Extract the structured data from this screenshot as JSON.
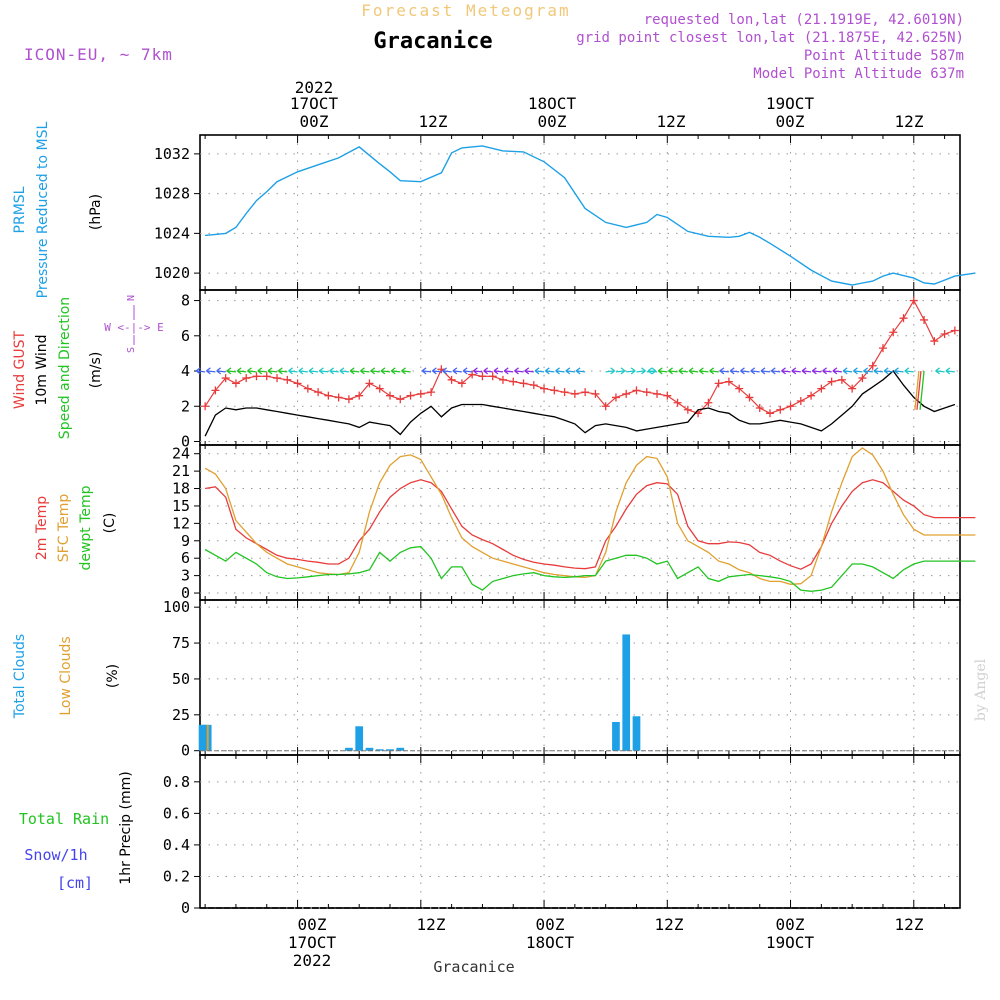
{
  "header": {
    "title": "Forecast Meteogram",
    "location": "Gracanice",
    "model": "ICON-EU, ~ 7km",
    "requested": "requested lon,lat (21.1919E, 42.6019N)",
    "closest": "grid point closest lon,lat (21.1875E, 42.625N)",
    "point_alt": "Point Altitude 587m",
    "model_alt": "Model Point Altitude 637m"
  },
  "footer": {
    "location": "Gracanice",
    "watermark": "by Angel"
  },
  "colors": {
    "pressure": "#1ea0e6",
    "gust": "#e83c3c",
    "wind": "#000000",
    "winddir": "#22c422",
    "t2m": "#e83c3c",
    "sfc": "#e0a030",
    "dewpt": "#22c422",
    "total_clouds": "#1ea0e6",
    "low_clouds": "#e0a030",
    "rain": "#22c422",
    "snow": "#4444ee",
    "meta": "#b050d0",
    "title": "#f0c878"
  },
  "time_axis": {
    "top_dates": [
      {
        "hour": 0,
        "year": "2022",
        "day": "17OCT",
        "z": "00Z"
      },
      {
        "hour": 24,
        "day": "18OCT",
        "z": "00Z"
      },
      {
        "hour": 48,
        "day": "19OCT",
        "z": "00Z"
      }
    ],
    "top_12z": [
      {
        "hour": 12,
        "z": "12Z"
      },
      {
        "hour": 36,
        "z": "12Z"
      },
      {
        "hour": 60,
        "z": "12Z"
      }
    ],
    "bottom_dates": [
      {
        "hour": 0,
        "z": "00Z",
        "day": "17OCT",
        "year": "2022"
      },
      {
        "hour": 24,
        "z": "00Z",
        "day": "18OCT"
      },
      {
        "hour": 48,
        "z": "00Z",
        "day": "19OCT"
      }
    ],
    "bottom_12z": [
      {
        "hour": 12,
        "z": "12Z"
      },
      {
        "hour": 36,
        "z": "12Z"
      },
      {
        "hour": 60,
        "z": "12Z"
      }
    ]
  },
  "panels": {
    "pressure": {
      "label_lines": [
        "PRMSL",
        "Pressure Reduced to MSL"
      ],
      "unit": "(hPa)",
      "ticks": [
        "1020",
        "1024",
        "1028",
        "1032"
      ]
    },
    "wind": {
      "label_gust": "Wind GUST",
      "label_wind": "10m Wind",
      "label_dir": "Speed and Direction",
      "unit": "(m/s)",
      "compass_n": "N",
      "compass_s": "S",
      "compass_ew": "W <-|-> E",
      "ticks": [
        "0",
        "2",
        "4",
        "6",
        "8"
      ]
    },
    "temp": {
      "label_t2m": "2m Temp",
      "label_sfc": "SFC Temp",
      "label_dew": "dewpt Temp",
      "unit": "(C)",
      "ticks": [
        "0",
        "3",
        "6",
        "9",
        "12",
        "15",
        "18",
        "21",
        "24"
      ]
    },
    "clouds": {
      "label_total": "Total Clouds",
      "label_low": "Low Clouds",
      "unit": "(%)",
      "ticks": [
        "0",
        "25",
        "50",
        "75",
        "100"
      ]
    },
    "precip": {
      "label_rain": "Total  Rain",
      "label_snow": "Snow/1h",
      "label_cm": "[cm]",
      "label_axis": "1hr Precip (mm)",
      "ticks": [
        "0",
        "0.2",
        "0.4",
        "0.6",
        "0.8"
      ]
    }
  },
  "chart_data": [
    {
      "type": "line",
      "title": "PRMSL Pressure Reduced to MSL",
      "ylabel": "(hPa)",
      "ylim": [
        1018.3,
        1033.9
      ],
      "x": [
        -9,
        -7,
        -6,
        -5,
        -4,
        -3,
        -2,
        0,
        2,
        4,
        6,
        8,
        9,
        10,
        12,
        14,
        15,
        16,
        18,
        20,
        22,
        24,
        26,
        28,
        30,
        32,
        34,
        35,
        36,
        37,
        38,
        40,
        42,
        43,
        44,
        45,
        46,
        48,
        50,
        52,
        54,
        55,
        56,
        57,
        58,
        60,
        61,
        62,
        63,
        64,
        66
      ],
      "series": [
        {
          "name": "PRMSL",
          "values": [
            1023.8,
            1024.0,
            1024.6,
            1026.0,
            1027.3,
            1028.2,
            1029.2,
            1030.2,
            1030.9,
            1031.6,
            1032.7,
            1031.0,
            1030.2,
            1029.3,
            1029.2,
            1030.1,
            1032.1,
            1032.6,
            1032.8,
            1032.3,
            1032.2,
            1031.2,
            1029.6,
            1026.5,
            1025.1,
            1024.6,
            1025.1,
            1025.9,
            1025.6,
            1024.9,
            1024.2,
            1023.7,
            1023.6,
            1023.7,
            1024.1,
            1023.6,
            1023.0,
            1021.7,
            1020.3,
            1019.2,
            1018.8,
            1019.0,
            1019.2,
            1019.7,
            1020.0,
            1019.5,
            1019.0,
            1018.9,
            1019.3,
            1019.7,
            1020.0
          ]
        }
      ]
    },
    {
      "type": "line",
      "title": "Wind GUST / 10m Wind Speed and Direction",
      "ylabel": "(m/s)",
      "ylim": [
        -0.2,
        8.6
      ],
      "x": [
        -9,
        -8,
        -7,
        -6,
        -5,
        -4,
        -3,
        -2,
        -1,
        0,
        1,
        2,
        3,
        4,
        5,
        6,
        7,
        8,
        9,
        10,
        11,
        12,
        13,
        14,
        15,
        16,
        17,
        18,
        19,
        20,
        21,
        22,
        23,
        24,
        25,
        26,
        27,
        28,
        29,
        30,
        31,
        32,
        33,
        34,
        35,
        36,
        37,
        38,
        39,
        40,
        41,
        42,
        43,
        44,
        45,
        46,
        47,
        48,
        49,
        50,
        51,
        52,
        53,
        54,
        55,
        56,
        57,
        58,
        59,
        60,
        61,
        62,
        63,
        64
      ],
      "series": [
        {
          "name": "Wind GUST",
          "values": [
            2.0,
            2.9,
            3.6,
            3.3,
            3.6,
            3.7,
            3.7,
            3.6,
            3.5,
            3.3,
            3.0,
            2.8,
            2.6,
            2.5,
            2.4,
            2.6,
            3.3,
            3.0,
            2.6,
            2.4,
            2.6,
            2.7,
            2.8,
            4.1,
            3.5,
            3.3,
            3.8,
            3.7,
            3.7,
            3.5,
            3.4,
            3.3,
            3.2,
            3.0,
            2.9,
            2.8,
            2.7,
            2.8,
            2.7,
            2.0,
            2.5,
            2.7,
            2.9,
            2.8,
            2.7,
            2.6,
            2.2,
            1.8,
            1.6,
            2.2,
            3.3,
            3.4,
            3.0,
            2.5,
            1.9,
            1.6,
            1.8,
            2.0,
            2.3,
            2.6,
            3.0,
            3.4,
            3.5,
            3.0,
            3.6,
            4.3,
            5.3,
            6.2,
            7.0,
            8.0,
            6.9,
            5.7,
            6.1,
            6.3
          ]
        },
        {
          "name": "10m Wind",
          "values": [
            0.3,
            1.5,
            1.9,
            1.8,
            1.9,
            1.9,
            1.8,
            1.7,
            1.6,
            1.5,
            1.4,
            1.3,
            1.2,
            1.1,
            1.0,
            0.8,
            1.1,
            1.0,
            0.9,
            0.4,
            1.1,
            1.6,
            2.0,
            1.4,
            1.9,
            2.1,
            2.1,
            2.1,
            2.0,
            1.9,
            1.8,
            1.7,
            1.6,
            1.5,
            1.4,
            1.2,
            1.0,
            0.5,
            0.9,
            1.0,
            0.9,
            0.8,
            0.6,
            0.7,
            0.8,
            0.9,
            1.0,
            1.1,
            1.8,
            1.9,
            1.7,
            1.6,
            1.2,
            1.0,
            1.0,
            1.1,
            1.2,
            1.1,
            1.0,
            0.8,
            0.6,
            1.0,
            1.5,
            2.0,
            2.7,
            3.1,
            3.5,
            4.0,
            3.2,
            2.5,
            2.0,
            1.7,
            1.9,
            2.1
          ]
        }
      ]
    },
    {
      "type": "line",
      "title": "2m Temp / SFC Temp / dewpt Temp",
      "ylabel": "(C)",
      "ylim": [
        -1.2,
        25.5
      ],
      "x": [
        -9,
        -8,
        -7,
        -6,
        -5,
        -4,
        -3,
        -2,
        -1,
        0,
        1,
        2,
        3,
        4,
        5,
        6,
        7,
        8,
        9,
        10,
        11,
        12,
        13,
        14,
        15,
        16,
        17,
        18,
        19,
        20,
        21,
        22,
        23,
        24,
        25,
        26,
        27,
        28,
        29,
        30,
        31,
        32,
        33,
        34,
        35,
        36,
        37,
        38,
        39,
        40,
        41,
        42,
        43,
        44,
        45,
        46,
        47,
        48,
        49,
        50,
        51,
        52,
        53,
        54,
        55,
        56,
        57,
        58,
        59,
        60,
        61,
        62,
        63,
        64,
        65,
        66
      ],
      "series": [
        {
          "name": "2m Temp",
          "values": [
            18.0,
            18.3,
            16.5,
            11.0,
            9.5,
            8.5,
            7.5,
            6.5,
            6.0,
            5.8,
            5.5,
            5.3,
            5.0,
            5.0,
            6.0,
            9.0,
            11.0,
            14.0,
            16.5,
            18.0,
            19.0,
            19.5,
            19.0,
            17.5,
            14.5,
            11.5,
            10.0,
            9.2,
            8.5,
            7.5,
            6.5,
            5.8,
            5.3,
            5.0,
            4.8,
            4.5,
            4.3,
            4.2,
            4.5,
            9.0,
            11.5,
            14.5,
            17.0,
            18.5,
            19.0,
            18.8,
            17.0,
            11.5,
            9.0,
            8.5,
            8.5,
            8.8,
            8.7,
            8.3,
            7.0,
            6.5,
            5.5,
            4.7,
            4.1,
            5.0,
            8.0,
            12.0,
            15.0,
            17.5,
            19.0,
            19.5,
            19.0,
            17.5,
            16.0,
            15.0,
            13.5,
            13.0,
            13.0,
            13.0,
            13.0,
            13.0
          ]
        },
        {
          "name": "SFC Temp",
          "values": [
            21.5,
            20.5,
            18.0,
            12.5,
            10.5,
            8.5,
            7.0,
            6.0,
            5.0,
            4.5,
            4.0,
            3.5,
            3.3,
            3.2,
            3.5,
            7.0,
            14.0,
            19.0,
            22.0,
            23.5,
            23.8,
            23.0,
            20.0,
            17.0,
            13.0,
            9.5,
            8.0,
            7.0,
            6.0,
            5.5,
            5.0,
            4.5,
            4.0,
            3.5,
            3.2,
            3.0,
            2.8,
            2.7,
            3.0,
            7.0,
            14.0,
            19.0,
            22.0,
            23.5,
            23.2,
            20.0,
            12.0,
            9.0,
            8.0,
            7.0,
            5.5,
            5.0,
            4.0,
            3.5,
            2.5,
            2.0,
            2.0,
            1.5,
            1.6,
            3.0,
            8.0,
            14.0,
            19.0,
            23.5,
            25.0,
            23.8,
            21.0,
            17.0,
            13.5,
            11.0,
            10.0,
            10.0,
            10.0,
            10.0,
            10.0,
            10.0
          ]
        },
        {
          "name": "dewpt Temp",
          "values": [
            7.5,
            6.5,
            5.5,
            7.0,
            6.0,
            5.0,
            3.5,
            2.8,
            2.5,
            2.6,
            2.8,
            3.0,
            3.2,
            3.2,
            3.3,
            3.5,
            4.0,
            7.0,
            5.5,
            7.0,
            7.8,
            8.0,
            6.0,
            2.5,
            4.5,
            4.5,
            1.5,
            0.5,
            2.0,
            2.5,
            3.0,
            3.3,
            3.5,
            3.0,
            2.8,
            2.7,
            2.8,
            3.0,
            3.0,
            5.5,
            6.0,
            6.5,
            6.5,
            6.0,
            5.0,
            5.5,
            2.5,
            3.5,
            4.5,
            2.5,
            2.0,
            2.8,
            3.0,
            3.2,
            3.0,
            2.8,
            2.5,
            2.0,
            0.5,
            0.3,
            0.5,
            1.0,
            3.0,
            5.0,
            5.0,
            4.5,
            3.5,
            2.5,
            4.0,
            5.0,
            5.5,
            5.5,
            5.5,
            5.5,
            5.5,
            5.5
          ]
        }
      ]
    },
    {
      "type": "bar",
      "title": "Total Clouds / Low Clouds",
      "ylabel": "(%)",
      "ylim": [
        -3,
        105
      ],
      "x": [
        -9.25,
        -9,
        -8.75,
        5,
        6,
        7,
        8,
        9,
        10,
        31,
        32,
        33
      ],
      "series": [
        {
          "name": "Total Clouds",
          "values": [
            18,
            18,
            18,
            2,
            17,
            2,
            1,
            1,
            2,
            20,
            81,
            24
          ]
        },
        {
          "name": "Low Clouds",
          "values": [
            18,
            18,
            18,
            0,
            0,
            0,
            0,
            0,
            0,
            0,
            0,
            0
          ]
        }
      ]
    },
    {
      "type": "bar",
      "title": "Total Rain / Snow/1h",
      "ylabel": "1hr Precip (mm)",
      "ylim": [
        0,
        0.97
      ],
      "x": [
        -9,
        0,
        12,
        24,
        36,
        48,
        60,
        64
      ],
      "series": [
        {
          "name": "Total Rain",
          "values": [
            0,
            0,
            0,
            0,
            0,
            0,
            0,
            0
          ]
        },
        {
          "name": "Snow/1h",
          "values": [
            0,
            0,
            0,
            0,
            0,
            0,
            0,
            0
          ]
        }
      ]
    }
  ]
}
